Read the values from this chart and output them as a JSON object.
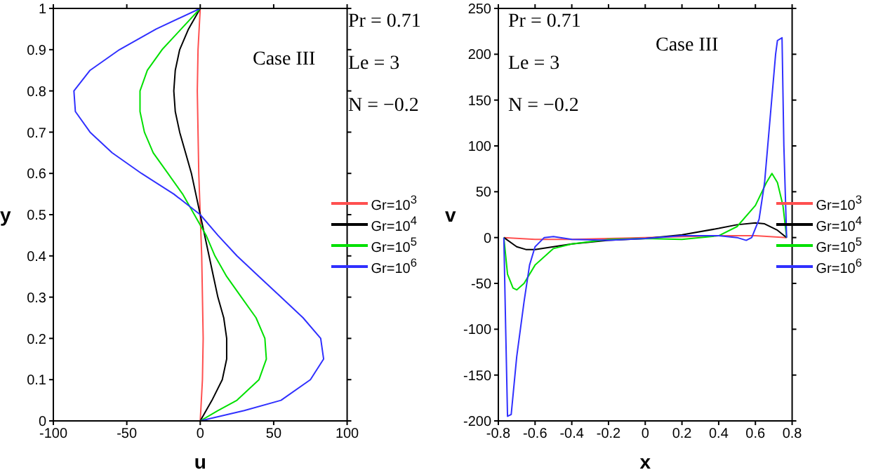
{
  "chart_data": [
    {
      "type": "line",
      "xlabel": "u",
      "ylabel": "y",
      "xlim": [
        -100,
        100
      ],
      "xticks": [
        -100,
        -50,
        0,
        50,
        100
      ],
      "ylim": [
        0,
        1
      ],
      "yticks": [
        0,
        0.1,
        0.2,
        0.3,
        0.4,
        0.5,
        0.6,
        0.7,
        0.8,
        0.9,
        1
      ],
      "legend": "right",
      "grid": false,
      "annotations": [
        "Pr = 0.71",
        "Le = 3",
        "N = −0.2",
        "Case III"
      ],
      "series": [
        {
          "name": "Gr=10$^{3}$",
          "color": "#ff5050",
          "x": [
            0,
            1.5,
            2,
            1.5,
            1,
            0,
            -1,
            -1.5,
            -2,
            -1.5,
            0
          ],
          "values": [
            0,
            0.1,
            0.2,
            0.3,
            0.4,
            0.5,
            0.6,
            0.7,
            0.8,
            0.9,
            1
          ]
        },
        {
          "name": "Gr=10$^{4}$",
          "color": "#000000",
          "x": [
            0,
            8,
            15,
            18,
            18,
            16,
            12,
            9,
            6,
            3,
            0,
            -3,
            -6,
            -10,
            -14,
            -17,
            -18,
            -17,
            -14,
            -8,
            0
          ],
          "values": [
            0,
            0.05,
            0.1,
            0.15,
            0.2,
            0.25,
            0.3,
            0.35,
            0.4,
            0.45,
            0.5,
            0.55,
            0.6,
            0.65,
            0.7,
            0.75,
            0.8,
            0.85,
            0.9,
            0.95,
            1
          ]
        },
        {
          "name": "Gr=10$^{5}$",
          "color": "#00e000",
          "x": [
            0,
            12,
            25,
            40,
            45,
            44,
            38,
            28,
            18,
            10,
            4,
            -4,
            -12,
            -22,
            -32,
            -38,
            -41,
            -41,
            -36,
            -26,
            -13,
            0
          ],
          "values": [
            0,
            0.025,
            0.05,
            0.1,
            0.15,
            0.2,
            0.25,
            0.3,
            0.35,
            0.4,
            0.45,
            0.5,
            0.55,
            0.6,
            0.65,
            0.7,
            0.75,
            0.8,
            0.85,
            0.9,
            0.95,
            1
          ]
        },
        {
          "name": "Gr=10$^{6}$",
          "color": "#3030ff",
          "x": [
            0,
            30,
            55,
            75,
            84,
            82,
            70,
            55,
            40,
            25,
            12,
            0,
            -18,
            -40,
            -60,
            -75,
            -85,
            -86,
            -75,
            -55,
            -30,
            0
          ],
          "values": [
            0,
            0.025,
            0.05,
            0.1,
            0.15,
            0.2,
            0.25,
            0.3,
            0.35,
            0.4,
            0.45,
            0.5,
            0.55,
            0.6,
            0.65,
            0.7,
            0.75,
            0.8,
            0.85,
            0.9,
            0.95,
            1
          ]
        }
      ]
    },
    {
      "type": "line",
      "xlabel": "x",
      "ylabel": "v",
      "xlim": [
        -0.8,
        0.8
      ],
      "xticks": [
        -0.8,
        -0.6,
        -0.4,
        -0.2,
        0,
        0.2,
        0.4,
        0.6,
        0.8
      ],
      "ylim": [
        -200,
        250
      ],
      "yticks": [
        -200,
        -150,
        -100,
        -50,
        0,
        50,
        100,
        150,
        200,
        250
      ],
      "legend": "right",
      "grid": false,
      "annotations": [
        "Pr = 0.71",
        "Le = 3",
        "N = −0.2",
        "Case III"
      ],
      "series": [
        {
          "name": "Gr=10$^{3}$",
          "color": "#ff5050",
          "x": [
            -0.77,
            -0.6,
            -0.4,
            0,
            0.4,
            0.6,
            0.77
          ],
          "values": [
            0,
            -2,
            -2,
            0,
            2,
            2,
            0
          ]
        },
        {
          "name": "Gr=10$^{4}$",
          "color": "#000000",
          "x": [
            -0.77,
            -0.7,
            -0.65,
            -0.6,
            -0.5,
            -0.4,
            -0.2,
            0,
            0.2,
            0.4,
            0.5,
            0.6,
            0.65,
            0.72,
            0.77
          ],
          "values": [
            0,
            -10,
            -13,
            -13,
            -10,
            -7,
            -3,
            -1,
            3,
            10,
            14,
            16,
            15,
            8,
            0
          ]
        },
        {
          "name": "Gr=10$^{5}$",
          "color": "#00e000",
          "x": [
            -0.77,
            -0.75,
            -0.72,
            -0.7,
            -0.66,
            -0.6,
            -0.5,
            -0.4,
            -0.2,
            0,
            0.2,
            0.4,
            0.5,
            0.6,
            0.66,
            0.69,
            0.72,
            0.75,
            0.77
          ],
          "values": [
            0,
            -40,
            -55,
            -57,
            -50,
            -30,
            -12,
            -7,
            -2,
            -1,
            -2,
            2,
            12,
            35,
            60,
            70,
            60,
            35,
            0
          ]
        },
        {
          "name": "Gr=10$^{6}$",
          "color": "#3030ff",
          "x": [
            -0.77,
            -0.76,
            -0.75,
            -0.73,
            -0.7,
            -0.66,
            -0.63,
            -0.6,
            -0.55,
            -0.5,
            -0.4,
            -0.2,
            0,
            0.2,
            0.4,
            0.5,
            0.55,
            0.58,
            0.62,
            0.65,
            0.68,
            0.71,
            0.72,
            0.745,
            0.755,
            0.77
          ],
          "values": [
            0,
            -100,
            -195,
            -193,
            -130,
            -70,
            -30,
            -10,
            0,
            1,
            -2,
            -3,
            -1,
            2,
            2,
            0,
            -3,
            0,
            20,
            60,
            130,
            200,
            215,
            218,
            100,
            0
          ]
        }
      ]
    }
  ]
}
